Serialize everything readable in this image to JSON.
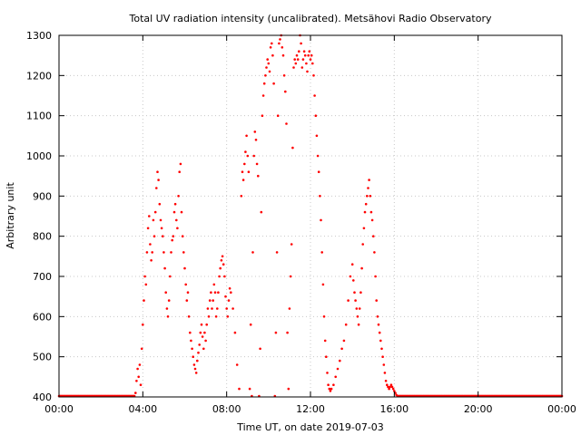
{
  "chart_data": {
    "type": "scatter",
    "title": "Total UV radiation intensity (uncalibrated). Metsähovi Radio Observatory",
    "xlabel": "Time UT, on date 2019-07-03",
    "ylabel": "Arbitrary unit",
    "xlim": [
      0,
      24
    ],
    "ylim": [
      400,
      1300
    ],
    "x_ticks": [
      {
        "value": 0,
        "label": "00:00"
      },
      {
        "value": 4,
        "label": "04:00"
      },
      {
        "value": 8,
        "label": "08:00"
      },
      {
        "value": 12,
        "label": "12:00"
      },
      {
        "value": 16,
        "label": "16:00"
      },
      {
        "value": 20,
        "label": "20:00"
      },
      {
        "value": 24,
        "label": "00:00"
      }
    ],
    "y_ticks": [
      {
        "value": 400,
        "label": "400"
      },
      {
        "value": 500,
        "label": "500"
      },
      {
        "value": 600,
        "label": "600"
      },
      {
        "value": 700,
        "label": "700"
      },
      {
        "value": 800,
        "label": "800"
      },
      {
        "value": 900,
        "label": "900"
      },
      {
        "value": 1000,
        "label": "1000"
      },
      {
        "value": 1100,
        "label": "1100"
      },
      {
        "value": 1200,
        "label": "1200"
      },
      {
        "value": 1300,
        "label": "1300"
      }
    ],
    "grid": true,
    "point_color": "#ff0000",
    "series": [
      {
        "points": [
          [
            0.0,
            400
          ],
          [
            0.5,
            400
          ],
          [
            1.0,
            400
          ],
          [
            1.5,
            400
          ],
          [
            2.0,
            400
          ],
          [
            2.5,
            400
          ],
          [
            3.0,
            400
          ],
          [
            3.4,
            400
          ],
          [
            3.6,
            400
          ],
          [
            3.65,
            410
          ],
          [
            3.7,
            440
          ],
          [
            3.75,
            470
          ],
          [
            3.8,
            450
          ],
          [
            3.85,
            480
          ],
          [
            3.9,
            430
          ],
          [
            3.95,
            520
          ],
          [
            4.0,
            580
          ],
          [
            4.05,
            640
          ],
          [
            4.1,
            700
          ],
          [
            4.15,
            680
          ],
          [
            4.2,
            760
          ],
          [
            4.25,
            820
          ],
          [
            4.3,
            850
          ],
          [
            4.35,
            780
          ],
          [
            4.4,
            740
          ],
          [
            4.45,
            760
          ],
          [
            4.5,
            840
          ],
          [
            4.55,
            800
          ],
          [
            4.6,
            860
          ],
          [
            4.65,
            920
          ],
          [
            4.7,
            960
          ],
          [
            4.75,
            940
          ],
          [
            4.8,
            880
          ],
          [
            4.85,
            840
          ],
          [
            4.9,
            820
          ],
          [
            4.95,
            800
          ],
          [
            5.0,
            760
          ],
          [
            5.05,
            720
          ],
          [
            5.1,
            660
          ],
          [
            5.15,
            620
          ],
          [
            5.2,
            600
          ],
          [
            5.25,
            640
          ],
          [
            5.3,
            700
          ],
          [
            5.35,
            760
          ],
          [
            5.4,
            790
          ],
          [
            5.45,
            800
          ],
          [
            5.5,
            860
          ],
          [
            5.55,
            880
          ],
          [
            5.6,
            840
          ],
          [
            5.65,
            820
          ],
          [
            5.7,
            900
          ],
          [
            5.75,
            960
          ],
          [
            5.8,
            980
          ],
          [
            5.85,
            860
          ],
          [
            5.9,
            800
          ],
          [
            5.95,
            760
          ],
          [
            6.0,
            720
          ],
          [
            6.05,
            680
          ],
          [
            6.1,
            640
          ],
          [
            6.15,
            660
          ],
          [
            6.2,
            600
          ],
          [
            6.25,
            560
          ],
          [
            6.3,
            540
          ],
          [
            6.35,
            520
          ],
          [
            6.4,
            500
          ],
          [
            6.45,
            480
          ],
          [
            6.5,
            470
          ],
          [
            6.55,
            460
          ],
          [
            6.6,
            490
          ],
          [
            6.65,
            510
          ],
          [
            6.7,
            530
          ],
          [
            6.75,
            560
          ],
          [
            6.8,
            580
          ],
          [
            6.85,
            550
          ],
          [
            6.9,
            520
          ],
          [
            6.95,
            560
          ],
          [
            7.0,
            540
          ],
          [
            7.05,
            580
          ],
          [
            7.1,
            620
          ],
          [
            7.15,
            600
          ],
          [
            7.2,
            640
          ],
          [
            7.25,
            660
          ],
          [
            7.3,
            620
          ],
          [
            7.35,
            640
          ],
          [
            7.4,
            680
          ],
          [
            7.45,
            660
          ],
          [
            7.5,
            600
          ],
          [
            7.55,
            620
          ],
          [
            7.6,
            660
          ],
          [
            7.65,
            700
          ],
          [
            7.7,
            720
          ],
          [
            7.75,
            740
          ],
          [
            7.8,
            750
          ],
          [
            7.85,
            730
          ],
          [
            7.9,
            700
          ],
          [
            7.95,
            650
          ],
          [
            8.0,
            620
          ],
          [
            8.05,
            600
          ],
          [
            8.1,
            640
          ],
          [
            8.15,
            670
          ],
          [
            8.2,
            660
          ],
          [
            8.3,
            620
          ],
          [
            8.4,
            560
          ],
          [
            8.5,
            480
          ],
          [
            8.6,
            420
          ],
          [
            8.7,
            900
          ],
          [
            8.75,
            960
          ],
          [
            8.8,
            940
          ],
          [
            8.85,
            980
          ],
          [
            8.9,
            1010
          ],
          [
            8.95,
            1050
          ],
          [
            9.0,
            1000
          ],
          [
            9.05,
            960
          ],
          [
            9.1,
            420
          ],
          [
            9.15,
            580
          ],
          [
            9.2,
            400
          ],
          [
            9.25,
            760
          ],
          [
            9.3,
            1000
          ],
          [
            9.35,
            1060
          ],
          [
            9.4,
            1040
          ],
          [
            9.45,
            980
          ],
          [
            9.5,
            950
          ],
          [
            9.55,
            400
          ],
          [
            9.6,
            520
          ],
          [
            9.65,
            860
          ],
          [
            9.7,
            1100
          ],
          [
            9.75,
            1150
          ],
          [
            9.8,
            1180
          ],
          [
            9.85,
            1200
          ],
          [
            9.9,
            1220
          ],
          [
            9.95,
            1240
          ],
          [
            10.0,
            1230
          ],
          [
            10.05,
            1210
          ],
          [
            10.1,
            1270
          ],
          [
            10.15,
            1280
          ],
          [
            10.2,
            1250
          ],
          [
            10.25,
            1180
          ],
          [
            10.3,
            400
          ],
          [
            10.35,
            560
          ],
          [
            10.4,
            760
          ],
          [
            10.45,
            1100
          ],
          [
            10.5,
            1280
          ],
          [
            10.55,
            1290
          ],
          [
            10.6,
            1300
          ],
          [
            10.65,
            1270
          ],
          [
            10.7,
            1250
          ],
          [
            10.75,
            1200
          ],
          [
            10.8,
            1160
          ],
          [
            10.85,
            1080
          ],
          [
            10.9,
            560
          ],
          [
            10.95,
            420
          ],
          [
            11.0,
            620
          ],
          [
            11.05,
            700
          ],
          [
            11.1,
            780
          ],
          [
            11.15,
            1020
          ],
          [
            11.2,
            1220
          ],
          [
            11.25,
            1240
          ],
          [
            11.3,
            1230
          ],
          [
            11.35,
            1250
          ],
          [
            11.4,
            1240
          ],
          [
            11.45,
            1260
          ],
          [
            11.5,
            1300
          ],
          [
            11.55,
            1280
          ],
          [
            11.6,
            1220
          ],
          [
            11.65,
            1240
          ],
          [
            11.7,
            1260
          ],
          [
            11.75,
            1250
          ],
          [
            11.8,
            1230
          ],
          [
            11.85,
            1210
          ],
          [
            11.9,
            1250
          ],
          [
            11.95,
            1260
          ],
          [
            12.0,
            1240
          ],
          [
            12.05,
            1250
          ],
          [
            12.1,
            1230
          ],
          [
            12.15,
            1200
          ],
          [
            12.2,
            1150
          ],
          [
            12.25,
            1100
          ],
          [
            12.3,
            1050
          ],
          [
            12.35,
            1000
          ],
          [
            12.4,
            960
          ],
          [
            12.45,
            900
          ],
          [
            12.5,
            840
          ],
          [
            12.55,
            760
          ],
          [
            12.6,
            680
          ],
          [
            12.65,
            600
          ],
          [
            12.7,
            540
          ],
          [
            12.75,
            500
          ],
          [
            12.8,
            460
          ],
          [
            12.85,
            430
          ],
          [
            12.9,
            420
          ],
          [
            12.95,
            415
          ],
          [
            13.0,
            420
          ],
          [
            13.1,
            430
          ],
          [
            13.2,
            450
          ],
          [
            13.3,
            470
          ],
          [
            13.4,
            490
          ],
          [
            13.5,
            520
          ],
          [
            13.6,
            540
          ],
          [
            13.7,
            580
          ],
          [
            13.8,
            640
          ],
          [
            13.9,
            700
          ],
          [
            14.0,
            730
          ],
          [
            14.05,
            690
          ],
          [
            14.1,
            660
          ],
          [
            14.15,
            640
          ],
          [
            14.2,
            620
          ],
          [
            14.25,
            600
          ],
          [
            14.3,
            580
          ],
          [
            14.35,
            620
          ],
          [
            14.4,
            660
          ],
          [
            14.45,
            720
          ],
          [
            14.5,
            780
          ],
          [
            14.55,
            820
          ],
          [
            14.6,
            860
          ],
          [
            14.65,
            880
          ],
          [
            14.7,
            900
          ],
          [
            14.75,
            920
          ],
          [
            14.8,
            940
          ],
          [
            14.85,
            900
          ],
          [
            14.9,
            860
          ],
          [
            14.95,
            840
          ],
          [
            15.0,
            800
          ],
          [
            15.05,
            760
          ],
          [
            15.1,
            700
          ],
          [
            15.15,
            640
          ],
          [
            15.2,
            600
          ],
          [
            15.25,
            580
          ],
          [
            15.3,
            560
          ],
          [
            15.35,
            540
          ],
          [
            15.4,
            520
          ],
          [
            15.45,
            500
          ],
          [
            15.5,
            480
          ],
          [
            15.55,
            460
          ],
          [
            15.6,
            440
          ],
          [
            15.65,
            430
          ],
          [
            15.7,
            425
          ],
          [
            15.75,
            420
          ],
          [
            15.8,
            425
          ],
          [
            15.85,
            430
          ],
          [
            15.9,
            425
          ],
          [
            15.95,
            420
          ],
          [
            16.0,
            415
          ],
          [
            16.05,
            410
          ],
          [
            16.1,
            405
          ],
          [
            16.15,
            400
          ],
          [
            16.5,
            400
          ],
          [
            17.0,
            400
          ],
          [
            17.5,
            400
          ],
          [
            18.0,
            400
          ],
          [
            18.5,
            400
          ],
          [
            19.0,
            400
          ],
          [
            19.5,
            400
          ],
          [
            20.0,
            400
          ],
          [
            20.5,
            400
          ],
          [
            21.0,
            400
          ],
          [
            21.5,
            400
          ],
          [
            22.0,
            400
          ],
          [
            22.5,
            400
          ],
          [
            23.0,
            400
          ],
          [
            23.5,
            400
          ],
          [
            24.0,
            400
          ]
        ]
      }
    ]
  }
}
